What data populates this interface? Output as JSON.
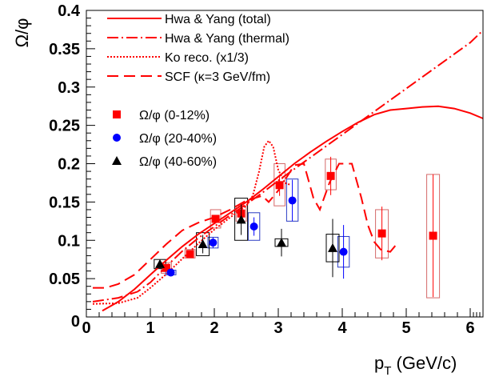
{
  "chart_data": {
    "type": "scatter",
    "title": "",
    "xlabel": "p_T (GeV/c)",
    "ylabel": "Ω/φ",
    "xlim": [
      0,
      6.2
    ],
    "ylim": [
      0,
      0.4
    ],
    "x_ticks": [
      0,
      1,
      2,
      3,
      4,
      5,
      6
    ],
    "x_tick_labels": [
      "0",
      "1",
      "2",
      "3",
      "4",
      "5",
      "6"
    ],
    "y_ticks": [
      0.05,
      0.1,
      0.15,
      0.2,
      0.25,
      0.3,
      0.35,
      0.4
    ],
    "y_tick_labels": [
      "0.05",
      "0.1",
      "0.15",
      "0.2",
      "0.25",
      "0.3",
      "0.35",
      "0.4"
    ],
    "y_zero_label": "0",
    "legend_position": "top-left",
    "model_curves": [
      {
        "name": "Hwa & Yang (total)",
        "style": "solid",
        "color": "#ff0000",
        "points": [
          [
            0.25,
            0.008
          ],
          [
            0.5,
            0.02
          ],
          [
            0.75,
            0.036
          ],
          [
            1.0,
            0.055
          ],
          [
            1.25,
            0.074
          ],
          [
            1.5,
            0.092
          ],
          [
            1.75,
            0.108
          ],
          [
            2.0,
            0.122
          ],
          [
            2.25,
            0.136
          ],
          [
            2.5,
            0.15
          ],
          [
            2.75,
            0.166
          ],
          [
            3.0,
            0.183
          ],
          [
            3.25,
            0.2
          ],
          [
            3.5,
            0.215
          ],
          [
            3.75,
            0.229
          ],
          [
            4.0,
            0.242
          ],
          [
            4.25,
            0.254
          ],
          [
            4.5,
            0.264
          ],
          [
            4.75,
            0.27
          ],
          [
            5.0,
            0.272
          ],
          [
            5.25,
            0.274
          ],
          [
            5.5,
            0.275
          ],
          [
            5.75,
            0.272
          ],
          [
            6.0,
            0.266
          ],
          [
            6.2,
            0.259
          ]
        ]
      },
      {
        "name": "Hwa & Yang (thermal)",
        "style": "dash-dot",
        "color": "#ff0000",
        "points": [
          [
            0.1,
            0.02
          ],
          [
            0.5,
            0.025
          ],
          [
            0.8,
            0.033
          ],
          [
            1.0,
            0.045
          ],
          [
            1.25,
            0.066
          ],
          [
            1.5,
            0.086
          ],
          [
            1.75,
            0.103
          ],
          [
            2.0,
            0.118
          ],
          [
            2.25,
            0.133
          ],
          [
            2.5,
            0.147
          ],
          [
            2.75,
            0.162
          ],
          [
            3.0,
            0.178
          ],
          [
            3.5,
            0.208
          ],
          [
            4.0,
            0.238
          ],
          [
            4.5,
            0.268
          ],
          [
            5.0,
            0.298
          ],
          [
            5.5,
            0.328
          ],
          [
            6.0,
            0.358
          ],
          [
            6.2,
            0.374
          ]
        ]
      },
      {
        "name": "Ko reco. (x1/3)",
        "style": "dotted",
        "color": "#ff0000",
        "points": [
          [
            0.1,
            0.017
          ],
          [
            0.5,
            0.018
          ],
          [
            0.8,
            0.025
          ],
          [
            1.0,
            0.038
          ],
          [
            1.25,
            0.056
          ],
          [
            1.5,
            0.076
          ],
          [
            1.75,
            0.096
          ],
          [
            2.0,
            0.114
          ],
          [
            2.25,
            0.13
          ],
          [
            2.5,
            0.145
          ],
          [
            2.6,
            0.158
          ],
          [
            2.7,
            0.19
          ],
          [
            2.78,
            0.222
          ],
          [
            2.85,
            0.23
          ],
          [
            2.92,
            0.222
          ],
          [
            3.0,
            0.192
          ],
          [
            3.1,
            0.175
          ],
          [
            3.2,
            0.172
          ]
        ]
      },
      {
        "name": "SCF (κ=3 GeV/fm)",
        "style": "long-dash",
        "color": "#ff0000",
        "points": [
          [
            0.1,
            0.038
          ],
          [
            0.3,
            0.038
          ],
          [
            0.5,
            0.043
          ],
          [
            0.75,
            0.055
          ],
          [
            1.0,
            0.075
          ],
          [
            1.25,
            0.095
          ],
          [
            1.5,
            0.113
          ],
          [
            1.75,
            0.123
          ],
          [
            2.0,
            0.13
          ],
          [
            2.25,
            0.14
          ],
          [
            2.5,
            0.152
          ],
          [
            2.75,
            0.158
          ],
          [
            2.85,
            0.15
          ],
          [
            3.0,
            0.165
          ],
          [
            3.25,
            0.198
          ],
          [
            3.4,
            0.2
          ],
          [
            3.55,
            0.155
          ],
          [
            3.65,
            0.14
          ],
          [
            3.8,
            0.175
          ],
          [
            3.95,
            0.2
          ],
          [
            4.15,
            0.2
          ],
          [
            4.3,
            0.155
          ],
          [
            4.4,
            0.12
          ],
          [
            4.5,
            0.098
          ],
          [
            4.6,
            0.088
          ],
          [
            4.75,
            0.085
          ],
          [
            4.85,
            0.095
          ]
        ]
      }
    ],
    "series": [
      {
        "name": "Ω/φ (0-12%)",
        "marker": "square",
        "color": "#ff0000",
        "sys_color": "#d46a6a",
        "points": [
          {
            "x": 1.25,
            "y": 0.064,
            "err": 0.004,
            "sys_hw": 0.08,
            "sys_lo": 0.057,
            "sys_hi": 0.071
          },
          {
            "x": 1.62,
            "y": 0.082,
            "err": 0.003,
            "sys_hw": 0.08,
            "sys_lo": 0.077,
            "sys_hi": 0.088
          },
          {
            "x": 2.02,
            "y": 0.128,
            "err": 0.004,
            "sys_hw": 0.08,
            "sys_lo": 0.116,
            "sys_hi": 0.14
          },
          {
            "x": 2.42,
            "y": 0.135,
            "err": 0.005,
            "sys_hw": 0.08,
            "sys_lo": 0.125,
            "sys_hi": 0.145
          },
          {
            "x": 3.02,
            "y": 0.172,
            "err": 0.014,
            "sys_hw": 0.085,
            "sys_lo": 0.145,
            "sys_hi": 0.2
          },
          {
            "x": 3.82,
            "y": 0.184,
            "err": 0.025,
            "sys_hw": 0.085,
            "sys_lo": 0.166,
            "sys_hi": 0.206
          },
          {
            "x": 4.62,
            "y": 0.109,
            "err": 0.035,
            "sys_hw": 0.1,
            "sys_lo": 0.077,
            "sys_hi": 0.14
          },
          {
            "x": 5.42,
            "y": 0.106,
            "err": 0.08,
            "sys_hw": 0.1,
            "sys_lo": 0.025,
            "sys_hi": 0.186
          }
        ]
      },
      {
        "name": "Ω/φ (20-40%)",
        "marker": "circle",
        "color": "#0000ff",
        "sys_color": "#2a3cc4",
        "points": [
          {
            "x": 1.32,
            "y": 0.058,
            "err": 0.004,
            "sys_hw": 0.08,
            "sys_lo": 0.055,
            "sys_hi": 0.061
          },
          {
            "x": 1.98,
            "y": 0.097,
            "err": 0.007,
            "sys_hw": 0.08,
            "sys_lo": 0.09,
            "sys_hi": 0.104
          },
          {
            "x": 2.62,
            "y": 0.118,
            "err": 0.012,
            "sys_hw": 0.09,
            "sys_lo": 0.1,
            "sys_hi": 0.136
          },
          {
            "x": 3.22,
            "y": 0.152,
            "err": 0.027,
            "sys_hw": 0.09,
            "sys_lo": 0.125,
            "sys_hi": 0.18
          },
          {
            "x": 4.02,
            "y": 0.085,
            "err": 0.035,
            "sys_hw": 0.09,
            "sys_lo": 0.065,
            "sys_hi": 0.105
          }
        ]
      },
      {
        "name": "Ω/φ (40-60%)",
        "marker": "triangle",
        "color": "#000000",
        "sys_color": "#000000",
        "points": [
          {
            "x": 1.15,
            "y": 0.069,
            "err": 0.006,
            "sys_hw": 0.09,
            "sys_lo": 0.063,
            "sys_hi": 0.075
          },
          {
            "x": 1.82,
            "y": 0.095,
            "err": 0.012,
            "sys_hw": 0.1,
            "sys_lo": 0.08,
            "sys_hi": 0.11
          },
          {
            "x": 2.42,
            "y": 0.127,
            "err": 0.02,
            "sys_hw": 0.1,
            "sys_lo": 0.1,
            "sys_hi": 0.155
          },
          {
            "x": 3.05,
            "y": 0.097,
            "err": 0.018,
            "sys_hw": 0.1,
            "sys_lo": 0.092,
            "sys_hi": 0.102
          },
          {
            "x": 3.85,
            "y": 0.09,
            "err": 0.038,
            "sys_hw": 0.1,
            "sys_lo": 0.072,
            "sys_hi": 0.108
          }
        ]
      }
    ]
  }
}
